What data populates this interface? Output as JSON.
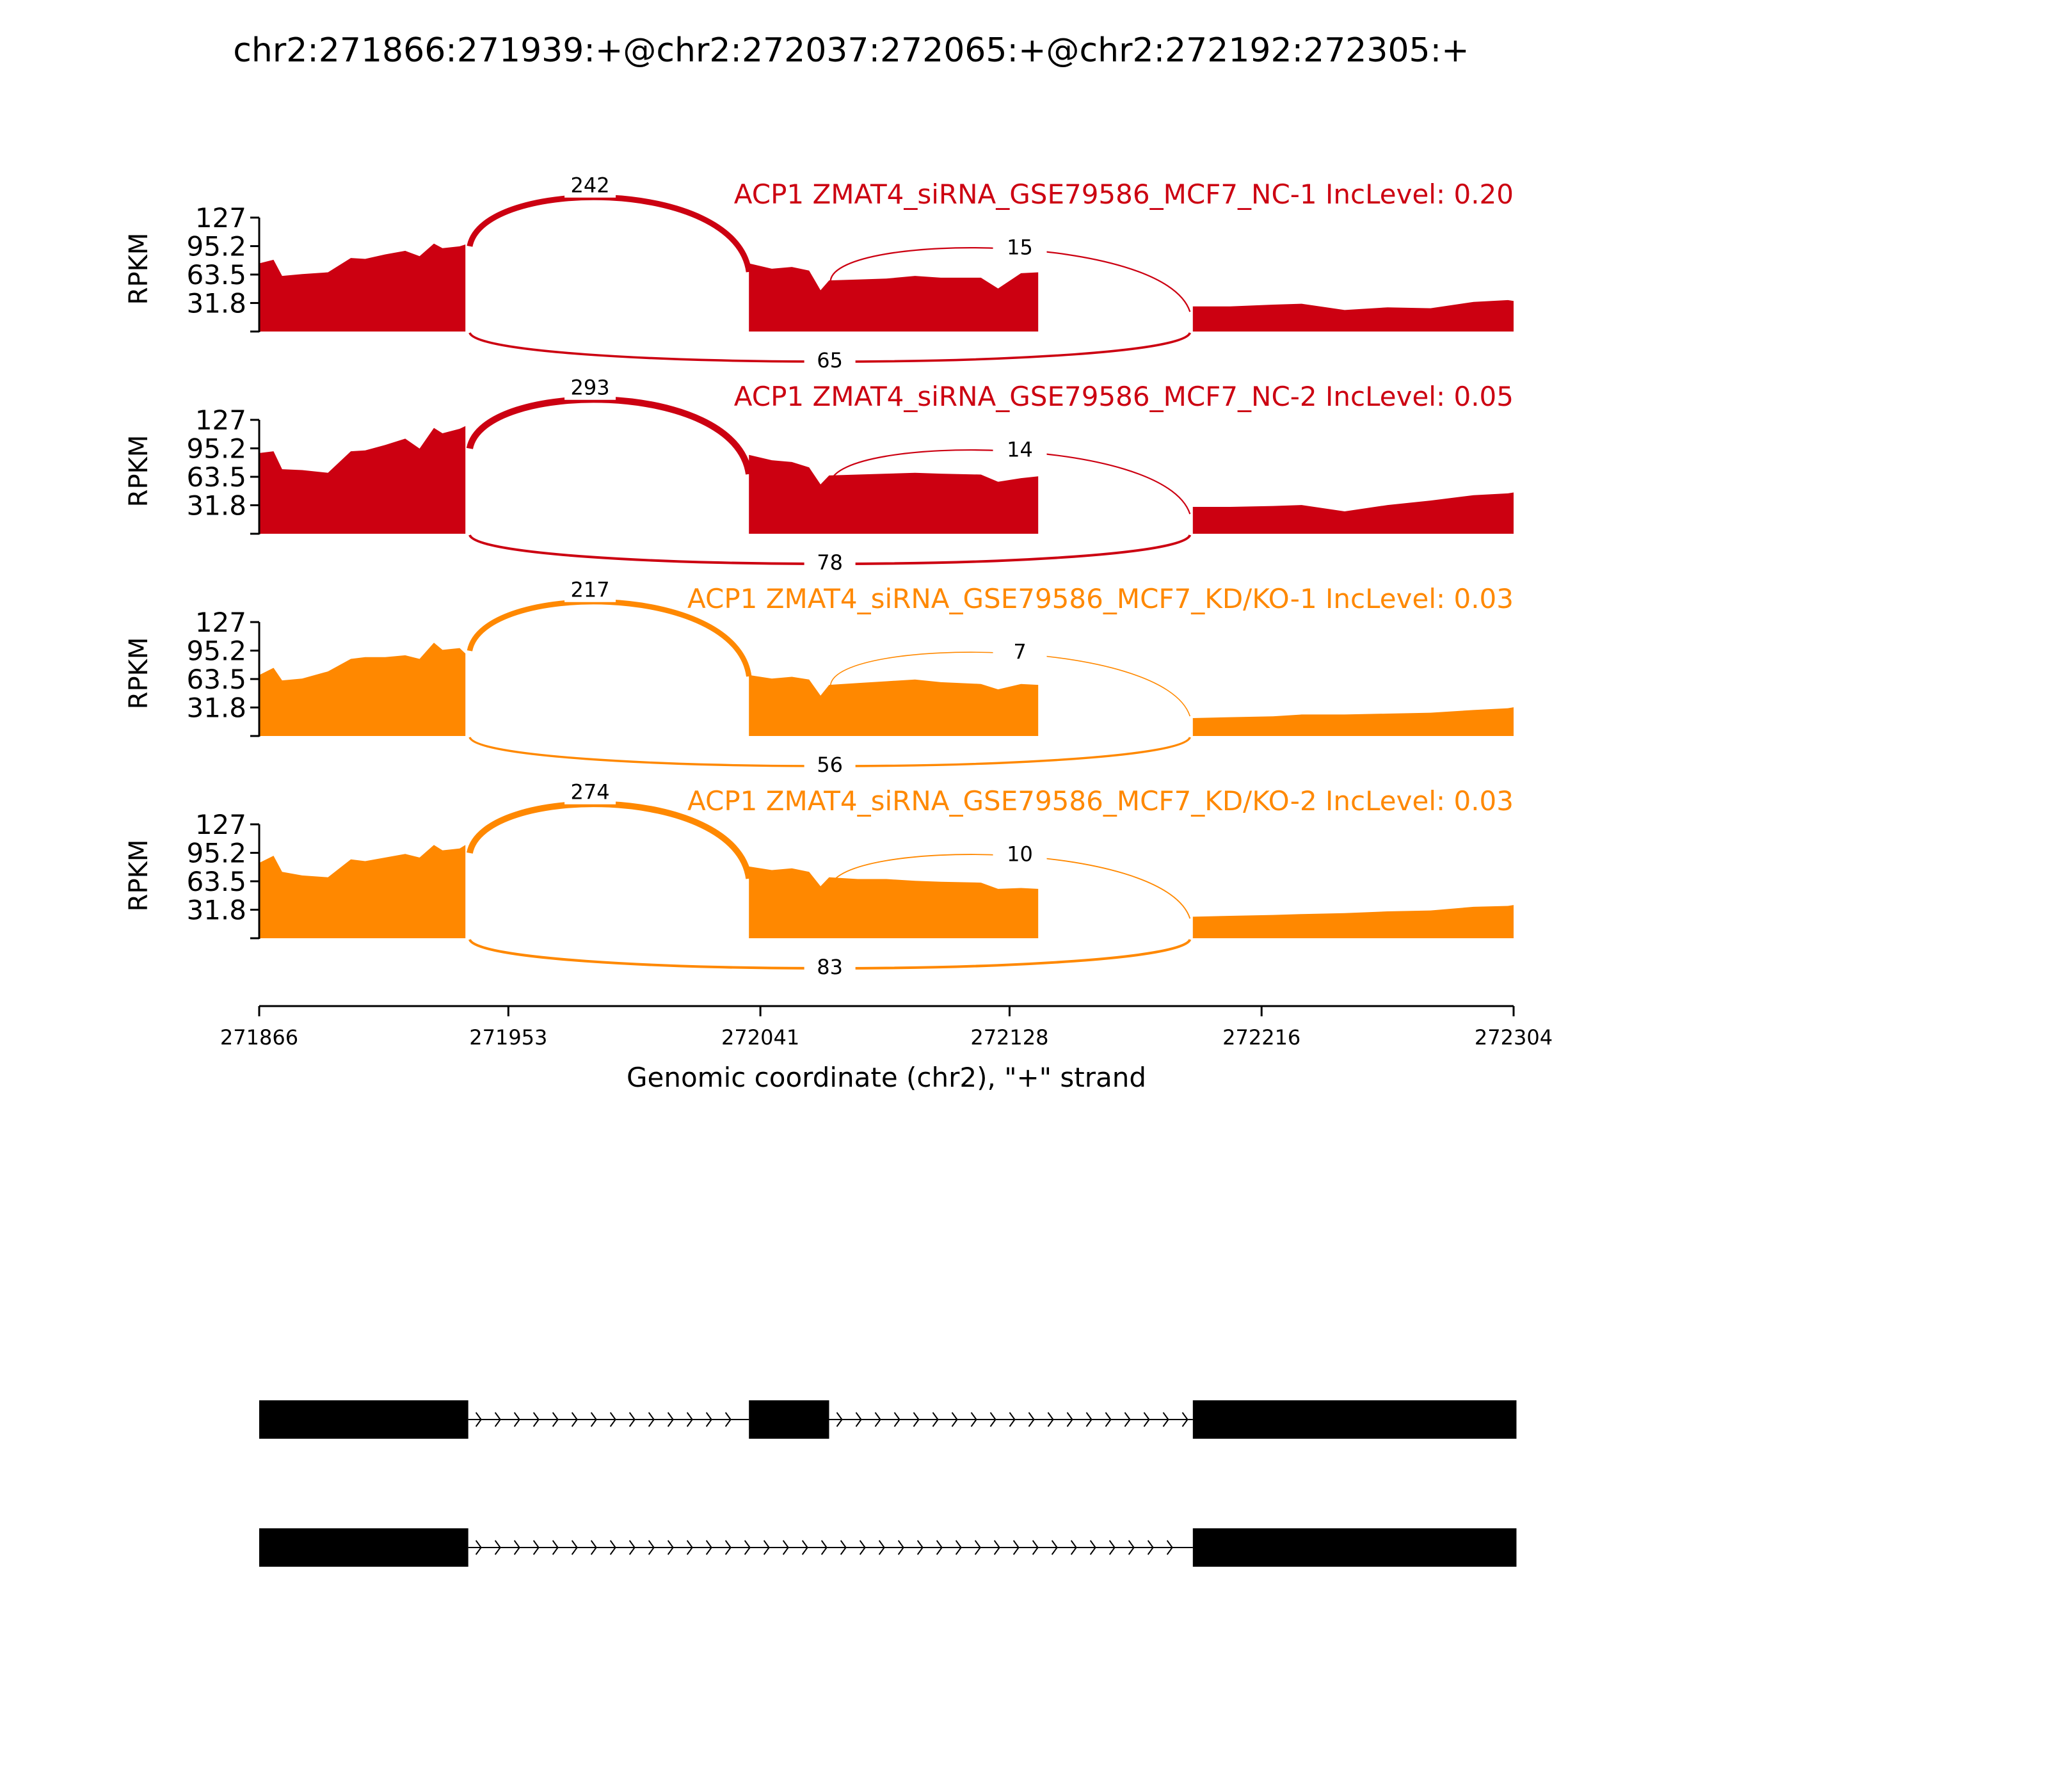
{
  "chart_data": {
    "type": "area",
    "title": "chr2:271866:271939:+@chr2:272037:272065:+@chr2:272192:272305:+",
    "xlabel": "Genomic coordinate (chr2), \"+\" strand",
    "ylabel": "RPKM",
    "xlim": [
      271866,
      272304
    ],
    "ylim": [
      0,
      127
    ],
    "x_ticks": [
      "271866",
      "271953",
      "272041",
      "272128",
      "272216",
      "272304"
    ],
    "y_ticks": [
      "127",
      "95.2",
      "63.5",
      "31.8"
    ],
    "exons": [
      [
        271866,
        271939
      ],
      [
        272037,
        272065
      ],
      [
        272192,
        272305
      ]
    ],
    "tracks": [
      {
        "label": "ACP1 ZMAT4_siRNA_GSE79586_MCF7_NC-1 IncLevel: 0.20",
        "color": "#cc0011",
        "junctions": {
          "upstream_inclusion": "242",
          "downstream_inclusion": "15",
          "skipping": "65"
        },
        "coverage": [
          {
            "x": [
              271866,
              271871,
              271874,
              271881,
              271890,
              271898,
              271903,
              271910,
              271917,
              271922,
              271927,
              271930,
              271936,
              271938
            ],
            "y": [
              76,
              80,
              62,
              64,
              66,
              82,
              81,
              86,
              90,
              84,
              98,
              93,
              95,
              97
            ]
          },
          {
            "x": [
              272037,
              272045,
              272052,
              272058,
              272062,
              272065,
              272075,
              272085,
              272095,
              272104,
              272118,
              272124,
              272132,
              272138
            ],
            "y": [
              76,
              70,
              72,
              68,
              46,
              57,
              58,
              59,
              62,
              60,
              60,
              48,
              65,
              66
            ]
          },
          {
            "x": [
              272192,
              272205,
              272220,
              272230,
              272245,
              272260,
              272275,
              272290,
              272302,
              272304
            ],
            "y": [
              28,
              28,
              30,
              31,
              24,
              27,
              26,
              33,
              35,
              34
            ]
          }
        ]
      },
      {
        "label": "ACP1 ZMAT4_siRNA_GSE79586_MCF7_NC-2 IncLevel: 0.05",
        "color": "#cc0011",
        "junctions": {
          "upstream_inclusion": "293",
          "downstream_inclusion": "14",
          "skipping": "78"
        },
        "coverage": [
          {
            "x": [
              271866,
              271871,
              271874,
              271881,
              271890,
              271898,
              271903,
              271910,
              271917,
              271922,
              271927,
              271930,
              271936,
              271938
            ],
            "y": [
              90,
              92,
              72,
              71,
              68,
              92,
              93,
              99,
              106,
              95,
              118,
              112,
              117,
              120
            ]
          },
          {
            "x": [
              272037,
              272045,
              272052,
              272058,
              272062,
              272065,
              272075,
              272085,
              272095,
              272104,
              272118,
              272124,
              272132,
              272138
            ],
            "y": [
              88,
              82,
              80,
              74,
              55,
              65,
              66,
              67,
              68,
              67,
              66,
              58,
              62,
              64
            ]
          },
          {
            "x": [
              272192,
              272205,
              272220,
              272230,
              272245,
              272260,
              272275,
              272290,
              272302,
              272304
            ],
            "y": [
              30,
              30,
              31,
              32,
              25,
              32,
              37,
              43,
              45,
              46
            ]
          }
        ]
      },
      {
        "label": "ACP1 ZMAT4_siRNA_GSE79586_MCF7_KD/KO-1 IncLevel: 0.03",
        "color": "#ff8800",
        "junctions": {
          "upstream_inclusion": "217",
          "downstream_inclusion": "7",
          "skipping": "56"
        },
        "coverage": [
          {
            "x": [
              271866,
              271871,
              271874,
              271881,
              271890,
              271898,
              271903,
              271910,
              271917,
              271922,
              271927,
              271930,
              271936,
              271938
            ],
            "y": [
              68,
              76,
              62,
              64,
              72,
              86,
              88,
              88,
              90,
              86,
              104,
              96,
              98,
              92
            ]
          },
          {
            "x": [
              272037,
              272045,
              272052,
              272058,
              272062,
              272065,
              272075,
              272085,
              272095,
              272104,
              272118,
              272124,
              272132,
              272138
            ],
            "y": [
              68,
              64,
              66,
              63,
              45,
              57,
              59,
              61,
              63,
              60,
              58,
              52,
              58,
              57
            ]
          },
          {
            "x": [
              272192,
              272205,
              272220,
              272230,
              272245,
              272260,
              272275,
              272290,
              272302,
              272304
            ],
            "y": [
              20,
              21,
              22,
              24,
              24,
              25,
              26,
              29,
              31,
              32
            ]
          }
        ]
      },
      {
        "label": "ACP1 ZMAT4_siRNA_GSE79586_MCF7_KD/KO-2 IncLevel: 0.03",
        "color": "#ff8800",
        "junctions": {
          "upstream_inclusion": "274",
          "downstream_inclusion": "10",
          "skipping": "83"
        },
        "coverage": [
          {
            "x": [
              271866,
              271871,
              271874,
              271881,
              271890,
              271898,
              271903,
              271910,
              271917,
              271922,
              271927,
              271930,
              271936,
              271938
            ],
            "y": [
              84,
              92,
              74,
              70,
              68,
              88,
              86,
              90,
              94,
              90,
              104,
              98,
              100,
              104
            ]
          },
          {
            "x": [
              272037,
              272045,
              272052,
              272058,
              272062,
              272065,
              272075,
              272085,
              272095,
              272104,
              272118,
              272124,
              272132,
              272138
            ],
            "y": [
              80,
              76,
              78,
              74,
              58,
              68,
              66,
              66,
              64,
              63,
              62,
              55,
              56,
              55
            ]
          },
          {
            "x": [
              272192,
              272205,
              272220,
              272230,
              272245,
              272260,
              272275,
              272290,
              272302,
              272304
            ],
            "y": [
              24,
              25,
              26,
              27,
              28,
              30,
              31,
              35,
              36,
              37
            ]
          }
        ]
      }
    ],
    "isoforms": [
      {
        "exons": [
          [
            271866,
            271939
          ],
          [
            272037,
            272065
          ],
          [
            272192,
            272305
          ]
        ]
      },
      {
        "exons": [
          [
            271866,
            271939
          ],
          [
            272192,
            272305
          ]
        ]
      }
    ]
  }
}
